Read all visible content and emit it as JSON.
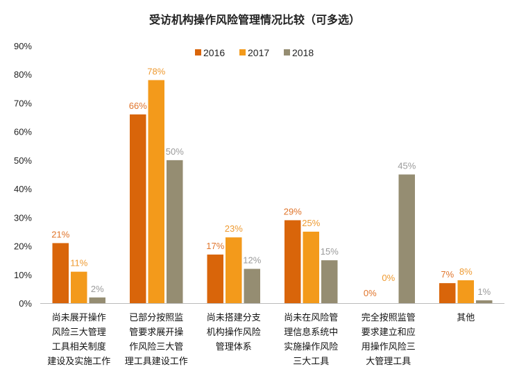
{
  "chart_data": {
    "type": "bar",
    "title": "受访机构操作风险管理情况比较（可多选）",
    "xlabel": "",
    "ylabel": "",
    "ylim": [
      0,
      90
    ],
    "yticks": [
      "0%",
      "10%",
      "20%",
      "30%",
      "40%",
      "50%",
      "60%",
      "70%",
      "80%",
      "90%"
    ],
    "legend_position": "top-center",
    "categories": [
      [
        "尚未展开操作",
        "风险三大管理",
        "工具相关制度",
        "建设及实施工作"
      ],
      [
        "已部分按照监",
        "管要求展开操",
        "作风险三大管",
        "理工具建设工作"
      ],
      [
        "尚未搭建分支",
        "机构操作风险",
        "管理体系"
      ],
      [
        "尚未在风险管",
        "理信息系统中",
        "实施操作风险",
        "三大工具"
      ],
      [
        "完全按照监管",
        "要求建立和应",
        "用操作风险三",
        "大管理工具"
      ],
      [
        "其他"
      ]
    ],
    "series": [
      {
        "name": "2016",
        "color": "#D9650A",
        "label_color": "#E0742A",
        "values": [
          21,
          66,
          17,
          29,
          0,
          7
        ],
        "labels": [
          "21%",
          "66%",
          "17%",
          "29%",
          "0%",
          "7%"
        ]
      },
      {
        "name": "2017",
        "color": "#F39A1B",
        "label_color": "#EE9A30",
        "values": [
          11,
          78,
          23,
          25,
          0,
          8
        ],
        "labels": [
          "11%",
          "78%",
          "23%",
          "25%",
          "0%",
          "8%"
        ]
      },
      {
        "name": "2018",
        "color": "#958D72",
        "label_color": "#9A9A9A",
        "values": [
          2,
          50,
          12,
          15,
          45,
          1
        ],
        "labels": [
          "2%",
          "50%",
          "12%",
          "15%",
          "45%",
          "1%"
        ]
      }
    ]
  }
}
